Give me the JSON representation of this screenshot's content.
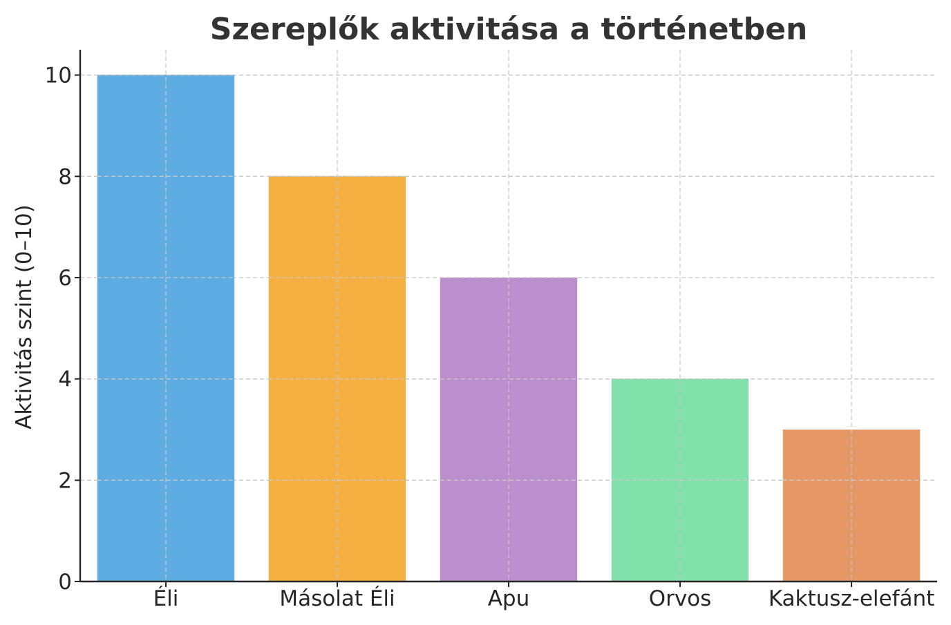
{
  "chart_data": {
    "type": "bar",
    "title": "Szereplők aktivitása a történetben",
    "xlabel": "",
    "ylabel": "Aktivitás szint (0–10)",
    "categories": [
      "Éli",
      "Másolat Éli",
      "Apu",
      "Orvos",
      "Kaktusz-elefánt"
    ],
    "values": [
      10,
      8,
      6,
      4,
      3
    ],
    "colors": [
      "#5DADE2",
      "#F5B041",
      "#BB8FCE",
      "#82E0AA",
      "#E59866"
    ],
    "ylim": [
      0,
      10.5
    ],
    "yticks": [
      0,
      2,
      4,
      6,
      8,
      10
    ],
    "grid": true,
    "legend": "none"
  }
}
